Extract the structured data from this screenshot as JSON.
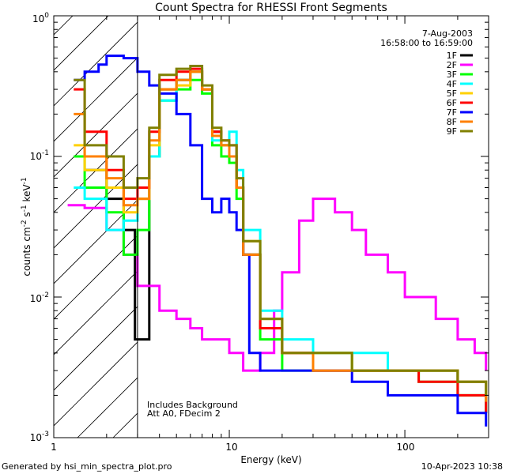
{
  "chart_data": {
    "type": "line",
    "title": "Count Spectra for RHESSI Front Segments",
    "xlabel": "Energy (keV)",
    "ylabel": "counts cm-2 s-1 keV-1",
    "xscale": "log",
    "yscale": "log",
    "xlim": [
      1,
      300
    ],
    "ylim": [
      0.001,
      1
    ],
    "x_tick_labels": [
      "1",
      "10",
      "100"
    ],
    "y_tick_labels": [
      {
        "base": "10",
        "exp": "-3"
      },
      {
        "base": "10",
        "exp": "-2"
      },
      {
        "base": "10",
        "exp": "-1"
      },
      {
        "base": "10",
        "exp": "0"
      }
    ],
    "ylabel_parts": [
      "counts cm",
      "-2",
      " s",
      "-1",
      " keV",
      "-1"
    ],
    "date": "7-Aug-2003",
    "time_range": "16:58:00 to 16:59:00",
    "annotation_lines": [
      "Includes Background",
      "Att A0, FDecim 2"
    ],
    "hatched_region_xmax": 3,
    "series": [
      {
        "name": "1F",
        "color": "#000000",
        "x": [
          1.5,
          2.0,
          2.5,
          2.9,
          3.5,
          4.0,
          5.0,
          6.0,
          7.0,
          8.0,
          9.0,
          10.0,
          11.0,
          12.0,
          15.0,
          20.0,
          30.0,
          50.0,
          80.0,
          120.0,
          200.0,
          290.0
        ],
        "y": [
          0.08,
          0.05,
          0.03,
          0.005,
          0.1,
          0.3,
          0.35,
          0.4,
          0.3,
          0.15,
          0.12,
          0.1,
          0.06,
          0.02,
          0.006,
          0.004,
          0.003,
          0.003,
          0.003,
          0.003,
          0.0025,
          0.0015
        ]
      },
      {
        "name": "2F",
        "color": "#ff00ff",
        "x": [
          1.2,
          1.5,
          2.0,
          2.5,
          3.0,
          4.0,
          5.0,
          6.0,
          7.0,
          8.0,
          10.0,
          12.0,
          15.0,
          18.0,
          20.0,
          25.0,
          30.0,
          40.0,
          50.0,
          60.0,
          80.0,
          100.0,
          150.0,
          200.0,
          250.0,
          290.0
        ],
        "y": [
          0.045,
          0.043,
          0.03,
          0.02,
          0.012,
          0.008,
          0.007,
          0.006,
          0.005,
          0.005,
          0.004,
          0.003,
          0.004,
          0.008,
          0.015,
          0.035,
          0.05,
          0.04,
          0.03,
          0.02,
          0.015,
          0.01,
          0.007,
          0.005,
          0.004,
          0.003
        ]
      },
      {
        "name": "3F",
        "color": "#00ff00",
        "x": [
          1.3,
          1.5,
          2.0,
          2.5,
          3.0,
          3.5,
          4.0,
          5.0,
          6.0,
          7.0,
          8.0,
          9.0,
          10.0,
          11.0,
          12.0,
          15.0,
          20.0,
          30.0,
          50.0,
          80.0,
          120.0,
          200.0,
          290.0
        ],
        "y": [
          0.1,
          0.06,
          0.04,
          0.02,
          0.03,
          0.1,
          0.25,
          0.3,
          0.35,
          0.28,
          0.12,
          0.1,
          0.09,
          0.05,
          0.02,
          0.005,
          0.003,
          0.004,
          0.003,
          0.003,
          0.0025,
          0.002,
          0.0015
        ]
      },
      {
        "name": "4F",
        "color": "#00ffff",
        "x": [
          1.3,
          1.5,
          2.0,
          2.5,
          3.0,
          3.5,
          4.0,
          5.0,
          6.0,
          7.0,
          8.0,
          9.0,
          10.0,
          11.0,
          12.0,
          15.0,
          20.0,
          30.0,
          50.0,
          80.0,
          120.0,
          200.0,
          290.0
        ],
        "y": [
          0.06,
          0.05,
          0.03,
          0.035,
          0.05,
          0.1,
          0.25,
          0.35,
          0.4,
          0.3,
          0.13,
          0.12,
          0.15,
          0.08,
          0.03,
          0.008,
          0.005,
          0.004,
          0.004,
          0.003,
          0.003,
          0.0025,
          0.002
        ]
      },
      {
        "name": "5F",
        "color": "#ffd000",
        "x": [
          1.3,
          1.5,
          2.0,
          2.5,
          3.0,
          3.5,
          4.0,
          5.0,
          6.0,
          7.0,
          8.0,
          9.0,
          10.0,
          11.0,
          12.0,
          15.0,
          20.0,
          30.0,
          50.0,
          80.0,
          120.0,
          200.0,
          290.0
        ],
        "y": [
          0.12,
          0.08,
          0.06,
          0.04,
          0.05,
          0.12,
          0.3,
          0.32,
          0.4,
          0.3,
          0.14,
          0.12,
          0.1,
          0.06,
          0.025,
          0.007,
          0.004,
          0.004,
          0.003,
          0.003,
          0.003,
          0.0025,
          0.002
        ]
      },
      {
        "name": "6F",
        "color": "#ff0000",
        "x": [
          1.3,
          1.5,
          2.0,
          2.5,
          3.0,
          3.5,
          4.0,
          5.0,
          6.0,
          7.0,
          8.0,
          9.0,
          10.0,
          11.0,
          12.0,
          15.0,
          20.0,
          30.0,
          50.0,
          80.0,
          120.0,
          200.0,
          290.0
        ],
        "y": [
          0.3,
          0.15,
          0.08,
          0.05,
          0.06,
          0.15,
          0.35,
          0.4,
          0.42,
          0.3,
          0.15,
          0.13,
          0.12,
          0.06,
          0.02,
          0.006,
          0.004,
          0.003,
          0.003,
          0.003,
          0.0025,
          0.002,
          0.0015
        ]
      },
      {
        "name": "7F",
        "color": "#0000ff",
        "x": [
          1.3,
          1.5,
          1.8,
          2.0,
          2.5,
          3.0,
          3.5,
          4.0,
          5.0,
          6.0,
          7.0,
          8.0,
          9.0,
          10.0,
          11.0,
          12.0,
          13.0,
          15.0,
          20.0,
          30.0,
          50.0,
          80.0,
          120.0,
          200.0,
          290.0
        ],
        "y": [
          0.35,
          0.4,
          0.45,
          0.52,
          0.5,
          0.4,
          0.32,
          0.28,
          0.2,
          0.12,
          0.05,
          0.04,
          0.05,
          0.04,
          0.03,
          0.02,
          0.004,
          0.003,
          0.003,
          0.003,
          0.0025,
          0.002,
          0.002,
          0.0015,
          0.0012
        ]
      },
      {
        "name": "8F",
        "color": "#ff8000",
        "x": [
          1.3,
          1.5,
          2.0,
          2.5,
          3.0,
          3.5,
          4.0,
          5.0,
          6.0,
          7.0,
          8.0,
          9.0,
          10.0,
          11.0,
          12.0,
          15.0,
          20.0,
          30.0,
          50.0,
          80.0,
          120.0,
          200.0,
          290.0
        ],
        "y": [
          0.2,
          0.1,
          0.07,
          0.045,
          0.05,
          0.13,
          0.3,
          0.35,
          0.4,
          0.3,
          0.14,
          0.12,
          0.1,
          0.06,
          0.02,
          0.007,
          0.004,
          0.003,
          0.003,
          0.003,
          0.003,
          0.0025,
          0.0018
        ]
      },
      {
        "name": "9F",
        "color": "#808000",
        "x": [
          1.3,
          1.5,
          2.0,
          2.5,
          3.0,
          3.5,
          4.0,
          5.0,
          6.0,
          7.0,
          8.0,
          9.0,
          10.0,
          11.0,
          12.0,
          15.0,
          20.0,
          30.0,
          50.0,
          80.0,
          120.0,
          200.0,
          290.0
        ],
        "y": [
          0.35,
          0.12,
          0.1,
          0.06,
          0.07,
          0.16,
          0.38,
          0.42,
          0.44,
          0.32,
          0.16,
          0.13,
          0.12,
          0.07,
          0.025,
          0.007,
          0.004,
          0.004,
          0.003,
          0.003,
          0.003,
          0.0025,
          0.002
        ]
      }
    ]
  },
  "footer": {
    "generated_by": "Generated by hsi_min_spectra_plot.pro",
    "timestamp": "10-Apr-2023 10:38"
  }
}
